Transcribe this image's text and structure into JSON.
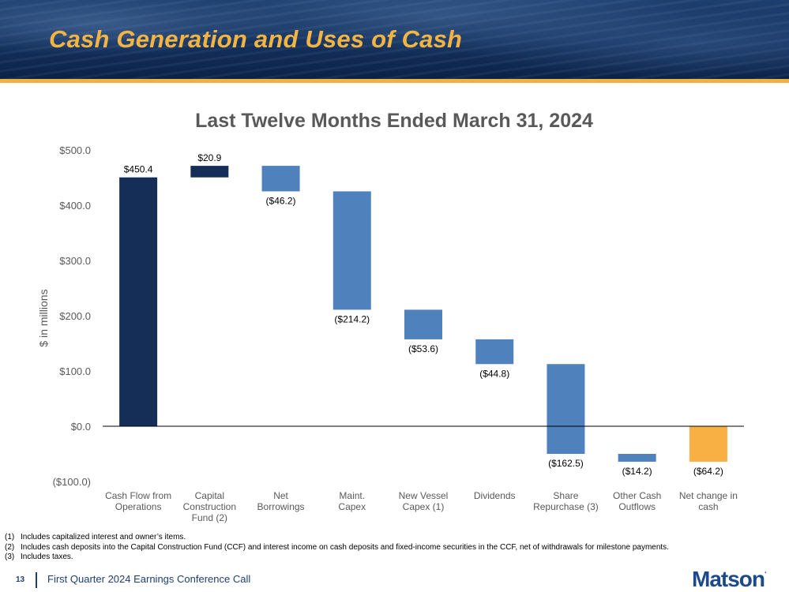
{
  "slide": {
    "title": "Cash Generation and Uses of Cash",
    "page_number": "13",
    "footer_text": "First Quarter 2024 Earnings Conference Call",
    "logo_text": "Matson",
    "logo_mark": "."
  },
  "colors": {
    "base_bar": "#152e57",
    "deposit_bar": "#152e57",
    "use_bar": "#4f81bd",
    "net_bar": "#f8b044",
    "title_accent": "#f3b443",
    "banner": "#13305c"
  },
  "chart_data": {
    "type": "bar",
    "subtype": "waterfall",
    "title": "Last Twelve Months Ended March 31, 2024",
    "ylabel": "$ in millions",
    "xlabel": "",
    "ylim": [
      -100,
      500
    ],
    "yticks": [
      500,
      400,
      300,
      200,
      100,
      0,
      -100
    ],
    "ytick_labels": [
      "$500.0",
      "$400.0",
      "$300.0",
      "$200.0",
      "$100.0",
      "$0.0",
      "($100.0)"
    ],
    "categories": [
      [
        "Cash Flow from",
        "Operations"
      ],
      [
        "Capital",
        "Construction",
        "Fund (2)"
      ],
      [
        "Net",
        "Borrowings"
      ],
      [
        "Maint.",
        "Capex"
      ],
      [
        "New Vessel",
        "Capex (1)"
      ],
      [
        "Dividends"
      ],
      [
        "Share",
        "Repurchase (3)"
      ],
      [
        "Other Cash",
        "Outflows"
      ],
      [
        "Net change in",
        "cash"
      ]
    ],
    "values": [
      450.4,
      20.9,
      -46.2,
      -214.2,
      -53.6,
      -44.8,
      -162.5,
      -14.2,
      -64.2
    ],
    "data_labels": [
      "$450.4",
      "$20.9",
      "($46.2)",
      "($214.2)",
      "($53.6)",
      "($44.8)",
      "($162.5)",
      "($14.2)",
      "($64.2)"
    ],
    "bar_kinds": [
      "base",
      "deposit",
      "use",
      "use",
      "use",
      "use",
      "use",
      "use",
      "net"
    ],
    "label_positions": [
      "above",
      "above",
      "below",
      "below",
      "below",
      "below",
      "below",
      "below",
      "below"
    ]
  },
  "footnotes": [
    {
      "num": "(1)",
      "text": "Includes capitalized interest and owner’s items."
    },
    {
      "num": "(2)",
      "text": "Includes cash deposits into the Capital Construction Fund (CCF) and interest income on cash deposits and fixed-income securities in the CCF, net of withdrawals for milestone payments."
    },
    {
      "num": "(3)",
      "text": "Includes taxes."
    }
  ]
}
